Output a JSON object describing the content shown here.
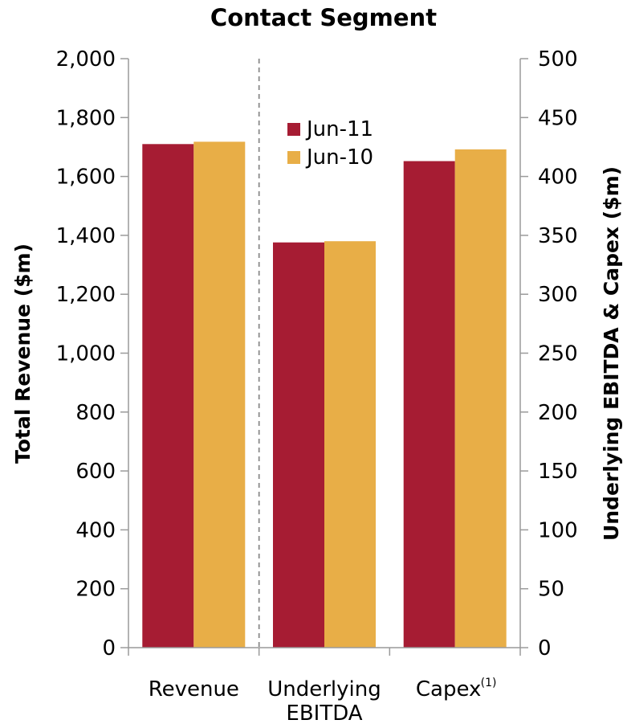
{
  "chart_data": {
    "type": "bar",
    "title": "Contact Segment",
    "categories": [
      "Revenue",
      "Underlying EBITDA",
      "Capex"
    ],
    "category_labels": [
      {
        "lines": [
          "Revenue"
        ],
        "sup": ""
      },
      {
        "lines": [
          "Underlying",
          "EBITDA"
        ],
        "sup": ""
      },
      {
        "lines": [
          "Capex"
        ],
        "sup": "(1)"
      }
    ],
    "series": [
      {
        "name": "Jun-11",
        "color": "#a61c33",
        "values": [
          1710,
          344,
          413
        ]
      },
      {
        "name": "Jun-10",
        "color": "#e8ae47",
        "values": [
          1718,
          345,
          423
        ]
      }
    ],
    "value_axis_by_category": [
      "left",
      "right",
      "right"
    ],
    "y_left": {
      "label": "Total Revenue  ($m)",
      "min": 0,
      "max": 2000,
      "ticks": [
        "0",
        "200",
        "400",
        "600",
        "800",
        "1,000",
        "1,200",
        "1,400",
        "1,600",
        "1,800",
        "2,000"
      ]
    },
    "y_right": {
      "label": "Underlying  EBITDA & Capex  ($m)",
      "min": 0,
      "max": 500,
      "ticks": [
        "0",
        "50",
        "100",
        "150",
        "200",
        "250",
        "300",
        "350",
        "400",
        "450",
        "500"
      ]
    },
    "separator_after_category": 0,
    "grid": false,
    "legend": {
      "position": "top-center",
      "entries": [
        "Jun-11",
        "Jun-10"
      ]
    }
  }
}
